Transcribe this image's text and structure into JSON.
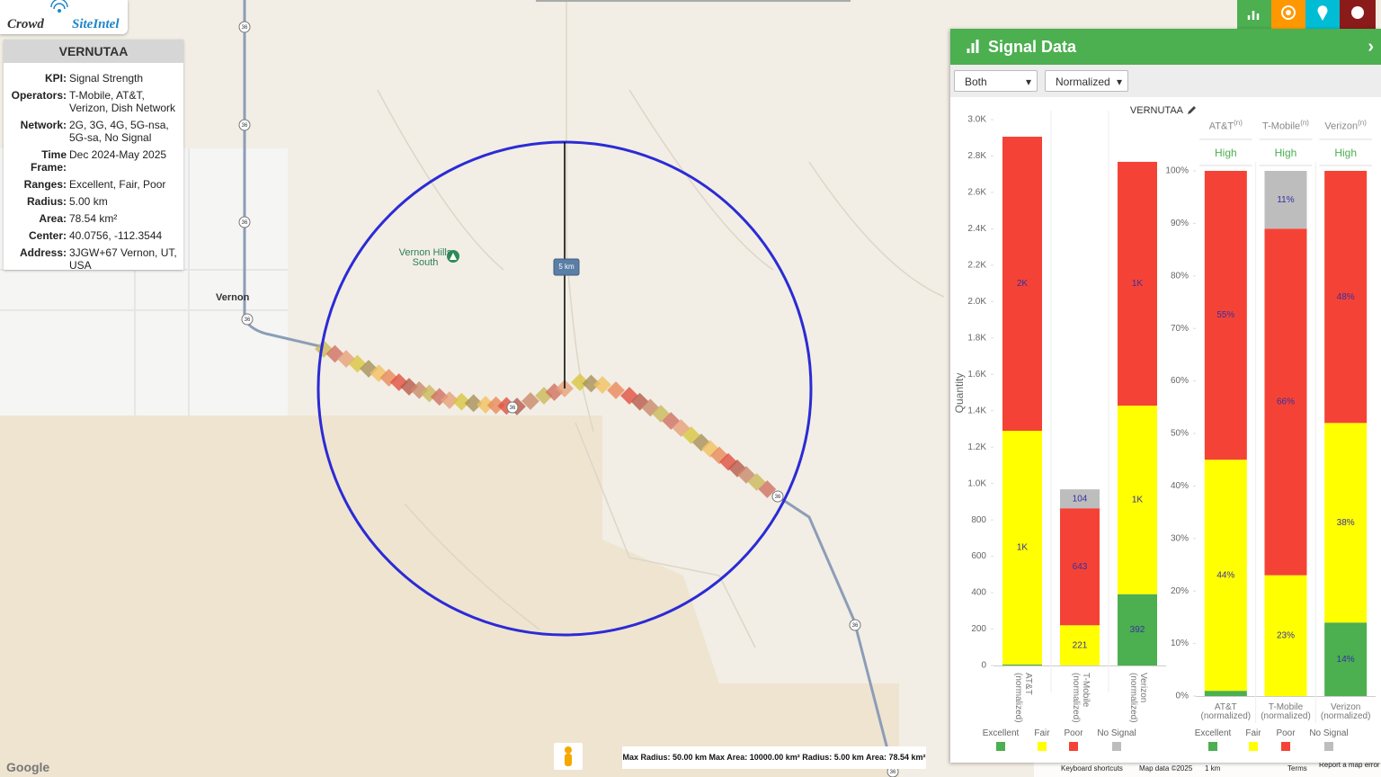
{
  "logo": {
    "first": "Crowd",
    "second": "SiteIntel"
  },
  "info": {
    "title": "VERNUTAA",
    "rows": [
      {
        "key": "KPI:",
        "value": "Signal Strength"
      },
      {
        "key": "Operators:",
        "value": "T-Mobile, AT&T, Verizon, Dish Network"
      },
      {
        "key": "Network:",
        "value": "2G, 3G, 4G, 5G-nsa, 5G-sa, No Signal"
      },
      {
        "key": "Time Frame:",
        "value": "Dec 2024-May 2025"
      },
      {
        "key": "Ranges:",
        "value": "Excellent, Fair, Poor"
      },
      {
        "key": "Radius:",
        "value": "5.00 km"
      },
      {
        "key": "Area:",
        "value": "78.54 km²"
      },
      {
        "key": "Center:",
        "value": "40.0756, -112.3544"
      },
      {
        "key": "Address:",
        "value": "3JGW+67 Vernon, UT, USA"
      }
    ]
  },
  "map": {
    "places": [
      "Vernon Hills South",
      "Vernon"
    ],
    "route": "36",
    "radius_label": "5 km",
    "status": "Max Radius: 50.00 km Max Area: 10000.00 km² Radius: 5.00 km Area: 78.54 km²",
    "google": "Google",
    "footer": [
      "Keyboard shortcuts",
      "Map data ©2025",
      "1 km",
      "Terms",
      "Report a map error"
    ]
  },
  "panel": {
    "title": "Signal Data",
    "filters": [
      "Both",
      "Normalized"
    ]
  },
  "chart_data": [
    {
      "type": "bar",
      "stacked": true,
      "title": "VERNUTAA",
      "ylabel": "Quantity",
      "categories": [
        "AT&T (normalized)",
        "T-Mobile (normalized)",
        "Verizon (normalized)"
      ],
      "series": [
        {
          "name": "Excellent",
          "color": "#4caf50",
          "values": [
            5,
            0,
            392
          ],
          "value_labels": [
            null,
            null,
            "392"
          ]
        },
        {
          "name": "Fair",
          "color": "#ffff00",
          "values": [
            1285,
            221,
            1036
          ],
          "value_labels": [
            "1K",
            "221",
            "1K"
          ]
        },
        {
          "name": "Poor",
          "color": "#f44336",
          "values": [
            1616,
            643,
            1340
          ],
          "value_labels": [
            "2K",
            "643",
            "1K"
          ]
        },
        {
          "name": "No Signal",
          "color": "#bdbdbd",
          "values": [
            0,
            104,
            0
          ],
          "value_labels": [
            null,
            "104",
            null
          ]
        }
      ],
      "ylim": [
        0,
        3000
      ],
      "yticks": [
        0,
        200,
        400,
        600,
        800,
        {
          "value": 1000,
          "label": "1.0K"
        },
        {
          "value": 1200,
          "label": "1.2K"
        },
        {
          "value": 1400,
          "label": "1.4K"
        },
        {
          "value": 1600,
          "label": "1.6K"
        },
        {
          "value": 1800,
          "label": "1.8K"
        },
        {
          "value": 2000,
          "label": "2.0K"
        },
        {
          "value": 2200,
          "label": "2.2K"
        },
        {
          "value": 2400,
          "label": "2.4K"
        },
        {
          "value": 2600,
          "label": "2.6K"
        },
        {
          "value": 2800,
          "label": "2.8K"
        },
        {
          "value": 3000,
          "label": "3.0K"
        }
      ],
      "grid": false,
      "legend": "bottom"
    },
    {
      "type": "bar",
      "stacked": true,
      "headers": [
        {
          "name": "AT&T",
          "note": "(n)",
          "rating": "High"
        },
        {
          "name": "T-Mobile",
          "note": "(n)",
          "rating": "High"
        },
        {
          "name": "Verizon",
          "note": "(n)",
          "rating": "High"
        }
      ],
      "categories": [
        "AT&T (normalized)",
        "T-Mobile (normalized)",
        "Verizon (normalized)"
      ],
      "series": [
        {
          "name": "Excellent",
          "color": "#4caf50",
          "values": [
            1,
            0,
            14
          ],
          "value_labels": [
            null,
            null,
            "14%"
          ]
        },
        {
          "name": "Fair",
          "color": "#ffff00",
          "values": [
            44,
            23,
            38
          ],
          "value_labels": [
            "44%",
            "23%",
            "38%"
          ]
        },
        {
          "name": "Poor",
          "color": "#f44336",
          "values": [
            55,
            66,
            48
          ],
          "value_labels": [
            "55%",
            "66%",
            "48%"
          ]
        },
        {
          "name": "No Signal",
          "color": "#bdbdbd",
          "values": [
            0,
            11,
            0
          ],
          "value_labels": [
            null,
            "11%",
            null
          ]
        }
      ],
      "ylim": [
        0,
        100
      ],
      "yticks": [
        {
          "value": 0,
          "label": "0%"
        },
        {
          "value": 10,
          "label": "10%"
        },
        {
          "value": 20,
          "label": "20%"
        },
        {
          "value": 30,
          "label": "30%"
        },
        {
          "value": 40,
          "label": "40%"
        },
        {
          "value": 50,
          "label": "50%"
        },
        {
          "value": 60,
          "label": "60%"
        },
        {
          "value": 70,
          "label": "70%"
        },
        {
          "value": 80,
          "label": "80%"
        },
        {
          "value": 90,
          "label": "90%"
        },
        {
          "value": 100,
          "label": "100%"
        }
      ],
      "grid": false,
      "legend": "bottom"
    }
  ]
}
